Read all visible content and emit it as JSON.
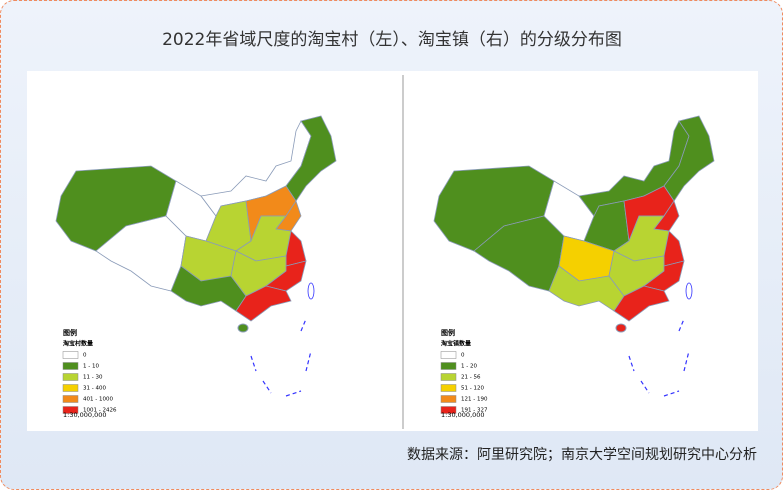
{
  "title": "2022年省域尺度的淘宝村（左）、淘宝镇（右）的分级分布图",
  "source": "数据来源：阿里研究院；南京大学空间规划研究中心分析",
  "maps": [
    {
      "legend_title": "图例",
      "legend_subtitle": "淘宝村数量",
      "scale": "1:30,000,000",
      "classes": [
        {
          "label": "0",
          "color": "#ffffff"
        },
        {
          "label": "1 - 10",
          "color": "#4f8f1e"
        },
        {
          "label": "11 - 30",
          "color": "#b8d432"
        },
        {
          "label": "31 - 400",
          "color": "#f5d000"
        },
        {
          "label": "401 - 1000",
          "color": "#f28a1a"
        },
        {
          "label": "1001 - 2426",
          "color": "#e8231b"
        }
      ]
    },
    {
      "legend_title": "图例",
      "legend_subtitle": "淘宝镇数量",
      "scale": "1:30,000,000",
      "classes": [
        {
          "label": "0",
          "color": "#ffffff"
        },
        {
          "label": "1 - 20",
          "color": "#4f8f1e"
        },
        {
          "label": "21 - 56",
          "color": "#b8d432"
        },
        {
          "label": "51 - 120",
          "color": "#f5d000"
        },
        {
          "label": "121 - 190",
          "color": "#f28a1a"
        },
        {
          "label": "191 - 327",
          "color": "#e8231b"
        }
      ]
    }
  ]
}
